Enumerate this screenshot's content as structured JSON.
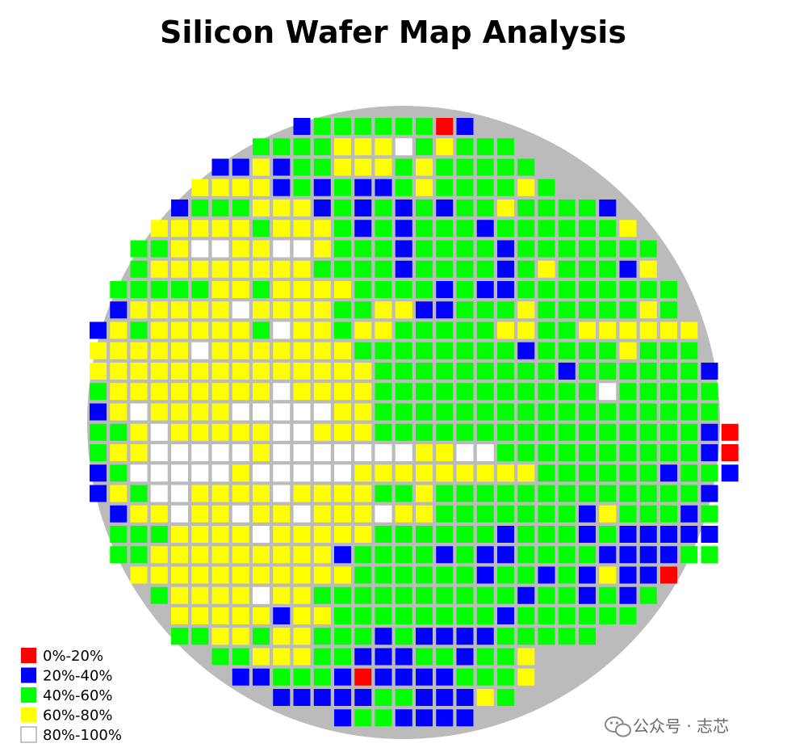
{
  "chart_data": {
    "type": "heatmap",
    "title": "Silicon Wafer Map Analysis",
    "xlabel": "",
    "ylabel": "",
    "grid": false,
    "legend_position": "bottom-left",
    "wafer_color": "#bbbbbb",
    "codes": {
      "R": "0%-20%",
      "B": "20%-40%",
      "G": "40%-60%",
      "Y": "60%-80%",
      "W": "80%-100%"
    },
    "legend": [
      {
        "code": "R",
        "label": "0%-20%",
        "color": "#ff0000"
      },
      {
        "code": "B",
        "label": "20%-40%",
        "color": "#0000ff"
      },
      {
        "code": "G",
        "label": "40%-60%",
        "color": "#00ff00"
      },
      {
        "code": "Y",
        "label": "60%-80%",
        "color": "#ffff00"
      },
      {
        "code": "W",
        "label": "80%-100%",
        "color": "#ffffff"
      }
    ],
    "first_col": 0,
    "rows": [
      {
        "start": 10,
        "cells": "BGGGGGGRB"
      },
      {
        "start": 8,
        "cells": "GGGGYYYWGYGGG"
      },
      {
        "start": 6,
        "cells": "BBYBGGYYYGYGGGGG"
      },
      {
        "start": 5,
        "cells": "YYYYBGBGBBGYGGGGYG"
      },
      {
        "start": 4,
        "cells": "BGGGYYYBGBGBGBGGYGGGGB"
      },
      {
        "start": 3,
        "cells": "YYYYYGYYYGBGBGGGBGGGGGGY"
      },
      {
        "start": 2,
        "cells": "GGYWWYYWWYGGGBGGGGBGGGGGGG"
      },
      {
        "start": 2,
        "cells": "GYYYYYYYYGGGGBGGGGBGYGGGBY"
      },
      {
        "start": 1,
        "cells": "GGGGGYYGYYYYGGGGBGBBGGGGGGGG"
      },
      {
        "start": 1,
        "cells": "BYYYYYWYYYYGGYYBBGGGYGGGGGYG"
      },
      {
        "start": 0,
        "cells": "BYGYYYYYGWYYGYYGGGGGYYGGYYYYYY"
      },
      {
        "start": 0,
        "cells": "YYYYYWYYYYYYYGGGGGGGGBGGGGYGGG"
      },
      {
        "start": 0,
        "cells": "YYYYYYYYYYYYYYGGGGGGGGGBGGGGGGB"
      },
      {
        "start": 0,
        "cells": "GYYYYYYYYWYYYYGGGGGGGGGGGWGGGGG"
      },
      {
        "start": 0,
        "cells": "BYWYYYYWWWWWYYGGGGGGGGGGGGGGGGG"
      },
      {
        "start": 0,
        "cells": "GGYWYYYYYWWYYYGGGGGGGGGGGGGGGGBR"
      },
      {
        "start": 0,
        "cells": "GYYWWWWWYWWWWWWWYYWWGGGGGGGGGGBR"
      },
      {
        "start": 0,
        "cells": "BGWWWWWYWWWWWYYYYYYYYYGGGGGGBGGB"
      },
      {
        "start": 0,
        "cells": "BYGWWYYYYWYYYYGGYGGGGGGGGGGGGGB"
      },
      {
        "start": 1,
        "cells": "BYYWYYWYYWYYYWYYGGGGGGGBYGGGBG"
      },
      {
        "start": 1,
        "cells": "GGGYYYYWYYYYYGGGGGGBGGGBGBBBBB"
      },
      {
        "start": 1,
        "cells": "GGYYYYYYYYYBGGGGBGBBGGGGBBBBGG"
      },
      {
        "start": 2,
        "cells": "YYYYYYYYYYYGGGGGGBGGBGBYBBR"
      },
      {
        "start": 3,
        "cells": "GYYYYWYYGGGGGGGGGGBGGBGBG"
      },
      {
        "start": 4,
        "cells": "YYYYYBYYGGGGGGGGBGGGGGG"
      },
      {
        "start": 4,
        "cells": "GGYYGYYGGGBGBBBBGGGGG"
      },
      {
        "start": 6,
        "cells": "GGYYYGGBBBGGBGGY"
      },
      {
        "start": 7,
        "cells": "BBGGGBRBBBBGGGY"
      },
      {
        "start": 9,
        "cells": "BBBBBGGBBBYG"
      },
      {
        "start": 12,
        "cells": "BGGBBBB"
      }
    ]
  },
  "watermark": {
    "icon": "wechat-icon",
    "text": "公众号 · 志芯"
  }
}
